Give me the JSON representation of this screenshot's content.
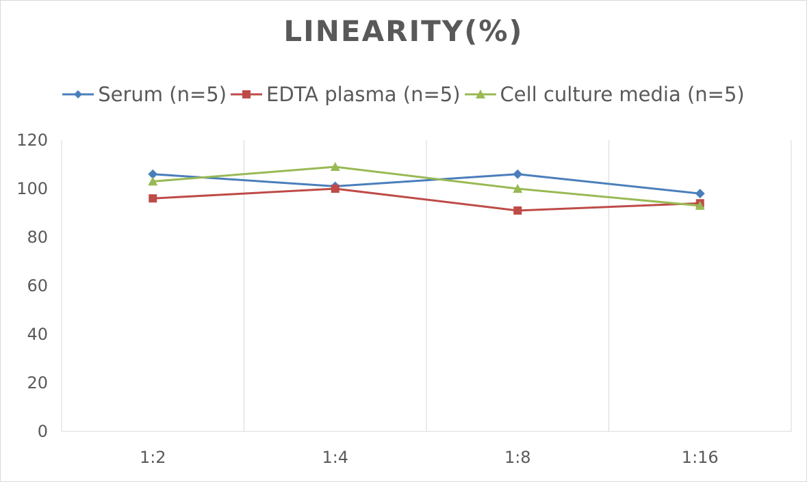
{
  "chart_data": {
    "type": "line",
    "title": "LINEARITY(%)",
    "xlabel": "",
    "ylabel": "",
    "categories": [
      "1:2",
      "1:4",
      "1:8",
      "1:16"
    ],
    "ylim": [
      0,
      120
    ],
    "yticks": [
      0,
      20,
      40,
      60,
      80,
      100,
      120
    ],
    "grid": "vertical",
    "legend": "top",
    "series": [
      {
        "name": "Serum (n=5)",
        "values": [
          106,
          101,
          106,
          98
        ],
        "color": "#4a7ebb",
        "marker": "diamond"
      },
      {
        "name": "EDTA plasma (n=5)",
        "values": [
          96,
          100,
          91,
          94
        ],
        "color": "#be4b48",
        "marker": "square"
      },
      {
        "name": "Cell culture media (n=5)",
        "values": [
          103,
          109,
          100,
          93
        ],
        "color": "#98b954",
        "marker": "triangle"
      }
    ]
  }
}
